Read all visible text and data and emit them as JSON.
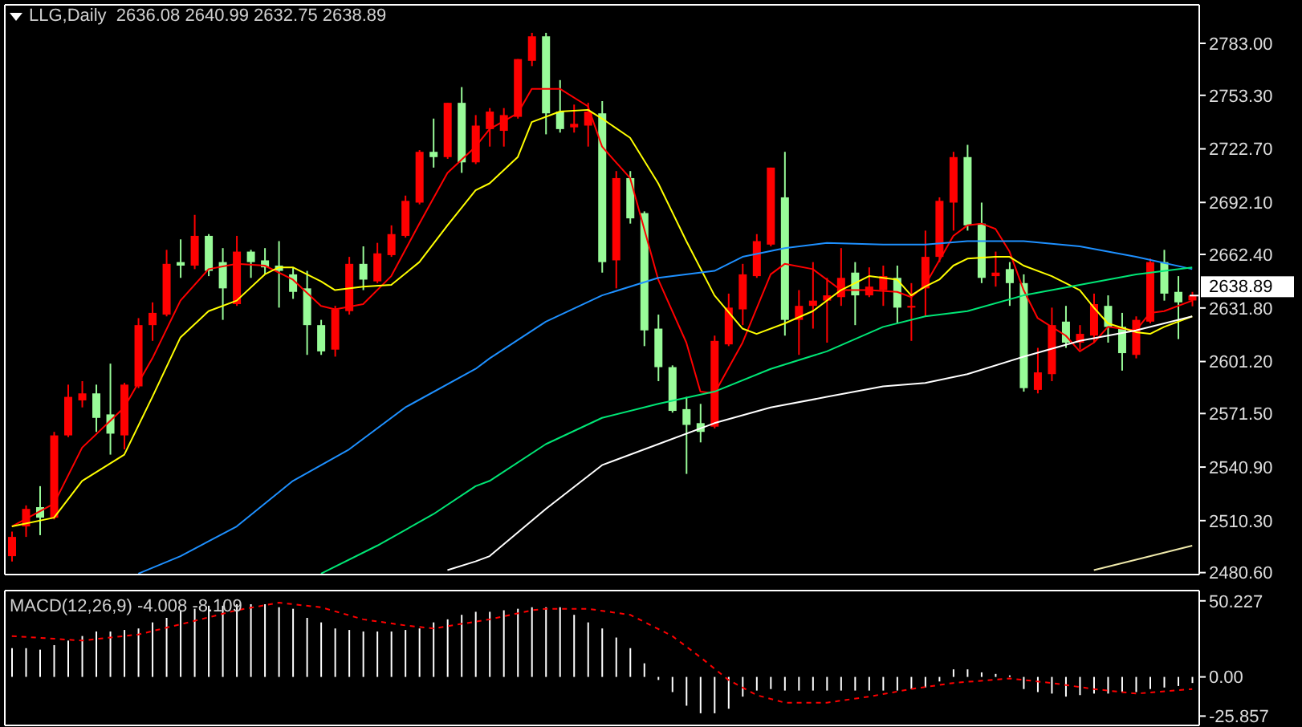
{
  "chart_data": [
    {
      "type": "candlestick",
      "title": "LLG,Daily  2636.08 2640.99 2632.75 2638.89",
      "tick_labels": "y",
      "categories": [
        null,
        null,
        null,
        null,
        null,
        null,
        null,
        null,
        null,
        null,
        null,
        null,
        null,
        null,
        null,
        null,
        null,
        null,
        null,
        null,
        null,
        null,
        null,
        null,
        null,
        null,
        null,
        null,
        null,
        null,
        null,
        null,
        null,
        null,
        null,
        null,
        null,
        null,
        null,
        null,
        null,
        null,
        null,
        null,
        null,
        null,
        null,
        null,
        null,
        null,
        null,
        null,
        null,
        null,
        null,
        null,
        null,
        null,
        null,
        null,
        null,
        null,
        null,
        null,
        null,
        null,
        null,
        null,
        null,
        null,
        null,
        null,
        null,
        null,
        null,
        null,
        null,
        null,
        null,
        null,
        null,
        null,
        null,
        null,
        null
      ],
      "ohlc": [
        [
          2490,
          2504,
          2487,
          2501
        ],
        [
          2507,
          2519,
          2501,
          2517
        ],
        [
          2518,
          2530,
          2502,
          2512
        ],
        [
          2512,
          2561,
          2511,
          2559
        ],
        [
          2559,
          2588,
          2558,
          2581
        ],
        [
          2579,
          2590,
          2575,
          2583
        ],
        [
          2583,
          2588,
          2561,
          2569
        ],
        [
          2571,
          2600,
          2548,
          2560
        ],
        [
          2559,
          2589,
          2551,
          2588
        ],
        [
          2587,
          2626,
          2586,
          2622
        ],
        [
          2622,
          2635,
          2613,
          2629
        ],
        [
          2628,
          2665,
          2627,
          2657
        ],
        [
          2658,
          2671,
          2649,
          2656
        ],
        [
          2656,
          2685,
          2654,
          2673
        ],
        [
          2673,
          2674,
          2650,
          2653
        ],
        [
          2658,
          2666,
          2625,
          2643
        ],
        [
          2634,
          2673,
          2633,
          2664
        ],
        [
          2664,
          2665,
          2649,
          2658
        ],
        [
          2659,
          2666,
          2651,
          2655
        ],
        [
          2656,
          2670,
          2632,
          2653
        ],
        [
          2651,
          2655,
          2637,
          2641
        ],
        [
          2643,
          2653,
          2605,
          2622
        ],
        [
          2622,
          2625,
          2605,
          2607
        ],
        [
          2608,
          2633,
          2604,
          2631
        ],
        [
          2630,
          2661,
          2628,
          2657
        ],
        [
          2657,
          2667,
          2642,
          2648
        ],
        [
          2647,
          2669,
          2646,
          2663
        ],
        [
          2662,
          2679,
          2661,
          2674
        ],
        [
          2673,
          2696,
          2672,
          2693
        ],
        [
          2692,
          2722,
          2691,
          2721
        ],
        [
          2721,
          2740,
          2712,
          2718
        ],
        [
          2718,
          2749,
          2717,
          2749
        ],
        [
          2749,
          2758,
          2709,
          2715
        ],
        [
          2715,
          2742,
          2714,
          2736
        ],
        [
          2734,
          2746,
          2724,
          2744
        ],
        [
          2733,
          2746,
          2724,
          2742
        ],
        [
          2741,
          2774,
          2740,
          2774
        ],
        [
          2773,
          2789,
          2770,
          2787
        ],
        [
          2787,
          2789,
          2731,
          2743
        ],
        [
          2744,
          2762,
          2732,
          2734
        ],
        [
          2735,
          2748,
          2732,
          2737
        ],
        [
          2736,
          2749,
          2724,
          2744
        ],
        [
          2743,
          2750,
          2652,
          2658
        ],
        [
          2659,
          2710,
          2643,
          2706
        ],
        [
          2706,
          2710,
          2680,
          2683
        ],
        [
          2686,
          2687,
          2610,
          2619
        ],
        [
          2620,
          2628,
          2590,
          2598
        ],
        [
          2598,
          2599,
          2572,
          2573
        ],
        [
          2574,
          2581,
          2537,
          2565
        ],
        [
          2566,
          2577,
          2555,
          2561
        ],
        [
          2564,
          2616,
          2563,
          2613
        ],
        [
          2611,
          2640,
          2610,
          2632
        ],
        [
          2631,
          2657,
          2622,
          2651
        ],
        [
          2650,
          2674,
          2649,
          2670
        ],
        [
          2668,
          2712,
          2667,
          2712
        ],
        [
          2695,
          2721,
          2616,
          2625
        ],
        [
          2625,
          2642,
          2605,
          2633
        ],
        [
          2633,
          2658,
          2620,
          2636
        ],
        [
          2636,
          2649,
          2612,
          2639
        ],
        [
          2638,
          2666,
          2633,
          2649
        ],
        [
          2652,
          2658,
          2622,
          2639
        ],
        [
          2639,
          2655,
          2638,
          2644
        ],
        [
          2642,
          2656,
          2633,
          2650
        ],
        [
          2649,
          2656,
          2623,
          2632
        ],
        [
          2632,
          2646,
          2613,
          2633
        ],
        [
          2643,
          2676,
          2627,
          2661
        ],
        [
          2661,
          2695,
          2658,
          2693
        ],
        [
          2692,
          2721,
          2676,
          2718
        ],
        [
          2718,
          2725,
          2676,
          2679
        ],
        [
          2680,
          2692,
          2646,
          2649
        ],
        [
          2650,
          2664,
          2644,
          2652
        ],
        [
          2654,
          2658,
          2633,
          2646
        ],
        [
          2646,
          2651,
          2584,
          2586
        ],
        [
          2585,
          2609,
          2583,
          2595
        ],
        [
          2594,
          2632,
          2590,
          2622
        ],
        [
          2624,
          2633,
          2609,
          2612
        ],
        [
          2612,
          2622,
          2608,
          2617
        ],
        [
          2616,
          2640,
          2612,
          2634
        ],
        [
          2633,
          2639,
          2612,
          2621
        ],
        [
          2621,
          2629,
          2596,
          2606
        ],
        [
          2605,
          2627,
          2603,
          2625
        ],
        [
          2624,
          2660,
          2623,
          2658
        ],
        [
          2658,
          2665,
          2636,
          2640
        ],
        [
          2641,
          2650,
          2614,
          2635
        ],
        [
          2636.08,
          2640.99,
          2632.75,
          2638.89
        ]
      ],
      "colors": [
        "#ff0000",
        "#ff0000",
        "#98fb98",
        "#ff0000",
        "#ff0000",
        "#ff0000",
        "#98fb98",
        "#98fb98",
        "#ff0000",
        "#ff0000",
        "#ff0000",
        "#ff0000",
        "#98fb98",
        "#ff0000",
        "#98fb98",
        "#98fb98",
        "#ff0000",
        "#98fb98",
        "#98fb98",
        "#98fb98",
        "#98fb98",
        "#98fb98",
        "#98fb98",
        "#ff0000",
        "#ff0000",
        "#98fb98",
        "#ff0000",
        "#ff0000",
        "#ff0000",
        "#ff0000",
        "#98fb98",
        "#ff0000",
        "#98fb98",
        "#ff0000",
        "#ff0000",
        "#ff0000",
        "#ff0000",
        "#ff0000",
        "#98fb98",
        "#98fb98",
        "#ff0000",
        "#ff0000",
        "#98fb98",
        "#ff0000",
        "#98fb98",
        "#98fb98",
        "#98fb98",
        "#98fb98",
        "#98fb98",
        "#98fb98",
        "#ff0000",
        "#ff0000",
        "#ff0000",
        "#ff0000",
        "#ff0000",
        "#98fb98",
        "#ff0000",
        "#ff0000",
        "#ff0000",
        "#ff0000",
        "#98fb98",
        "#ff0000",
        "#ff0000",
        "#98fb98",
        "#ff0000",
        "#ff0000",
        "#ff0000",
        "#ff0000",
        "#98fb98",
        "#98fb98",
        "#ff0000",
        "#98fb98",
        "#98fb98",
        "#ff0000",
        "#ff0000",
        "#98fb98",
        "#ff0000",
        "#ff0000",
        "#98fb98",
        "#98fb98",
        "#ff0000",
        "#ff0000",
        "#98fb98",
        "#98fb98",
        "#ff0000"
      ],
      "series": [
        {
          "type": "line",
          "color": "#ff0000",
          "values": [
            2507,
            null,
            null,
            2520,
            null,
            2552,
            null,
            null,
            2575,
            null,
            2603,
            null,
            2636,
            null,
            2654,
            null,
            2657,
            null,
            2656,
            null,
            2648,
            null,
            2633,
            2631,
            null,
            2634,
            null,
            2650,
            null,
            2680,
            null,
            2709,
            null,
            2724,
            2734,
            null,
            2743,
            2757,
            null,
            2757,
            null,
            2747,
            2724,
            null,
            2706,
            null,
            2648,
            null,
            2612,
            2584,
            2583,
            null,
            2612,
            null,
            2651,
            2657,
            null,
            2654,
            null,
            2642,
            null,
            2642,
            null,
            2641,
            2638,
            2645,
            2659,
            2673,
            2679,
            2680,
            2677,
            2664,
            2642,
            2626,
            2621,
            2616,
            2607,
            2612,
            2621,
            2620,
            2619,
            2629,
            2630,
            null,
            2636
          ]
        },
        {
          "type": "line",
          "color": "#ffff00",
          "values": [
            2507,
            null,
            null,
            2512,
            null,
            2533,
            null,
            null,
            2548,
            null,
            2581,
            null,
            2615,
            null,
            2630,
            null,
            2636,
            null,
            2651,
            2655,
            2655,
            null,
            2647,
            2642,
            null,
            2644,
            null,
            2645,
            null,
            2658,
            null,
            2679,
            null,
            2699,
            2703,
            null,
            2718,
            2738,
            null,
            2744,
            null,
            2745,
            2740,
            null,
            2729,
            null,
            2703,
            null,
            2670,
            null,
            2639,
            null,
            2620,
            2617,
            null,
            2623,
            null,
            2630,
            null,
            2642,
            null,
            2650,
            null,
            2648,
            2639,
            2644,
            2648,
            2656,
            2660,
            null,
            2661,
            2661,
            2656,
            null,
            2650,
            null,
            2642,
            2632,
            2623,
            null,
            2618,
            2617,
            2621,
            null,
            2627
          ]
        },
        {
          "type": "line",
          "color": "#1e90ff",
          "values": [
            null,
            null,
            null,
            null,
            null,
            null,
            null,
            null,
            null,
            2480,
            null,
            null,
            2490,
            null,
            null,
            null,
            2507,
            null,
            null,
            null,
            2533,
            null,
            null,
            null,
            2551,
            null,
            null,
            null,
            2575,
            null,
            null,
            null,
            null,
            2597,
            2603,
            null,
            null,
            null,
            2624,
            null,
            null,
            null,
            2639,
            null,
            null,
            null,
            2649,
            null,
            null,
            null,
            2653,
            null,
            2661,
            null,
            null,
            2666,
            null,
            null,
            2669,
            null,
            null,
            null,
            2668,
            null,
            null,
            2668,
            null,
            null,
            2670,
            null,
            null,
            null,
            2670,
            null,
            null,
            null,
            2667,
            null,
            null,
            null,
            2661,
            null,
            null,
            null,
            2654
          ]
        },
        {
          "type": "line",
          "color": "#00e676",
          "values": [
            null,
            null,
            null,
            null,
            null,
            null,
            null,
            null,
            null,
            null,
            null,
            null,
            null,
            null,
            null,
            null,
            null,
            null,
            null,
            null,
            null,
            null,
            2480,
            null,
            null,
            null,
            2496,
            null,
            null,
            null,
            2514,
            null,
            null,
            2530,
            2533,
            null,
            null,
            null,
            2554,
            null,
            null,
            null,
            2569,
            null,
            null,
            null,
            2577,
            null,
            null,
            null,
            2584,
            null,
            null,
            null,
            2597,
            null,
            null,
            null,
            2607,
            null,
            null,
            null,
            2621,
            null,
            null,
            2627,
            null,
            null,
            2630,
            null,
            null,
            null,
            2639,
            null,
            null,
            null,
            2645,
            null,
            null,
            null,
            2651,
            null,
            null,
            null,
            2655
          ]
        },
        {
          "type": "line",
          "color": "#ffffff",
          "values": [
            null,
            null,
            null,
            null,
            null,
            null,
            null,
            null,
            null,
            null,
            null,
            null,
            null,
            null,
            null,
            null,
            null,
            null,
            null,
            null,
            null,
            null,
            null,
            null,
            null,
            null,
            null,
            null,
            null,
            null,
            null,
            2482,
            null,
            2487,
            2490,
            null,
            null,
            null,
            2517,
            null,
            null,
            null,
            2542,
            null,
            null,
            null,
            2554,
            null,
            null,
            null,
            2566,
            null,
            null,
            null,
            2575,
            null,
            null,
            null,
            2581,
            null,
            null,
            null,
            2587,
            null,
            null,
            2589,
            null,
            null,
            2594,
            null,
            null,
            null,
            2604,
            null,
            null,
            null,
            2613,
            null,
            null,
            null,
            2619,
            null,
            null,
            null,
            2627
          ]
        },
        {
          "type": "line",
          "color": "#eee8aa",
          "values": [
            null,
            null,
            null,
            null,
            null,
            null,
            null,
            null,
            null,
            null,
            null,
            null,
            null,
            null,
            null,
            null,
            null,
            null,
            null,
            null,
            null,
            null,
            null,
            null,
            null,
            null,
            null,
            null,
            null,
            null,
            null,
            null,
            null,
            null,
            null,
            null,
            null,
            null,
            null,
            null,
            null,
            null,
            null,
            null,
            null,
            null,
            null,
            null,
            null,
            null,
            null,
            null,
            null,
            null,
            null,
            null,
            null,
            null,
            null,
            null,
            null,
            null,
            null,
            null,
            null,
            null,
            null,
            null,
            null,
            null,
            null,
            null,
            null,
            null,
            null,
            null,
            null,
            2482,
            null,
            null,
            2488,
            null,
            null,
            null,
            2496
          ]
        }
      ],
      "ylim": [
        2479.5,
        2805
      ],
      "yticks": [
        {
          "value": 2783,
          "label": "2783.00"
        },
        {
          "value": 2753.3,
          "label": "2753.30"
        },
        {
          "value": 2722.7,
          "label": "2722.70"
        },
        {
          "value": 2692.1,
          "label": "2692.10"
        },
        {
          "value": 2662.4,
          "label": "2662.40"
        },
        {
          "value": 2631.8,
          "label": "2631.80"
        },
        {
          "value": 2601.2,
          "label": "2601.20"
        },
        {
          "value": 2571.5,
          "label": "2571.50"
        },
        {
          "value": 2540.9,
          "label": "2540.90"
        },
        {
          "value": 2510.3,
          "label": "2510.30"
        },
        {
          "value": 2480.6,
          "label": "2480.60"
        }
      ],
      "annotations": [
        "2638.89"
      ]
    },
    {
      "type": "bar",
      "title": "MACD(12,26,9) -4.008 -8.109",
      "tick_labels": "y",
      "categories": [
        null,
        null,
        null,
        null,
        null,
        null,
        null,
        null,
        null,
        null,
        null,
        null,
        null,
        null,
        null,
        null,
        null,
        null,
        null,
        null,
        null,
        null,
        null,
        null,
        null,
        null,
        null,
        null,
        null,
        null,
        null,
        null,
        null,
        null,
        null,
        null,
        null,
        null,
        null,
        null,
        null,
        null,
        null,
        null,
        null,
        null,
        null,
        null,
        null,
        null,
        null,
        null,
        null,
        null,
        null,
        null,
        null,
        null,
        null,
        null,
        null,
        null,
        null,
        null,
        null,
        null,
        null,
        null,
        null,
        null,
        null,
        null,
        null,
        null,
        null,
        null,
        null,
        null,
        null,
        null,
        null,
        null,
        null,
        null,
        null
      ],
      "series": [
        {
          "type": "bar",
          "color": "#ffffff",
          "values": [
            19,
            19,
            18,
            21,
            24,
            27,
            30,
            30,
            31,
            32,
            36,
            39,
            44,
            45,
            47,
            47,
            48,
            48,
            48,
            46,
            45,
            39,
            36,
            32,
            31,
            30,
            30,
            30,
            31,
            32,
            36,
            38,
            41,
            43,
            43,
            44,
            45,
            46,
            46,
            46,
            41,
            36,
            32,
            26,
            19,
            9,
            -2,
            -10,
            -19,
            -24,
            -24,
            -21,
            -13,
            -9,
            -8,
            -9,
            -9,
            -9,
            -9,
            -9,
            -9,
            -9,
            -9,
            -9,
            -8,
            -7,
            -3,
            5,
            5,
            3,
            2,
            1,
            -8,
            -10,
            -11,
            -13,
            -12,
            -11,
            -11,
            -10,
            -10,
            -8,
            -7,
            -6,
            -4
          ]
        },
        {
          "type": "line",
          "color": "#ff0000",
          "line_style": "dashed",
          "values": [
            27,
            null,
            null,
            null,
            null,
            24,
            null,
            null,
            null,
            28,
            null,
            null,
            null,
            37,
            null,
            null,
            44,
            null,
            null,
            49,
            null,
            null,
            46,
            null,
            null,
            38,
            null,
            null,
            34,
            null,
            32,
            null,
            null,
            null,
            38,
            null,
            null,
            44,
            45,
            null,
            null,
            45,
            null,
            null,
            41,
            null,
            null,
            27,
            null,
            13,
            null,
            -2,
            null,
            -12,
            null,
            -17,
            null,
            null,
            -17,
            null,
            null,
            -13,
            null,
            null,
            -8,
            null,
            null,
            -4,
            null,
            null,
            null,
            -1,
            null,
            null,
            -4,
            null,
            null,
            -8,
            null,
            null,
            -11,
            null,
            null,
            null,
            -8
          ]
        }
      ],
      "ylim": [
        -32,
        57
      ],
      "yticks": [
        50.227,
        {
          "value": 0,
          "label": "0.00"
        },
        -25.857
      ]
    }
  ]
}
